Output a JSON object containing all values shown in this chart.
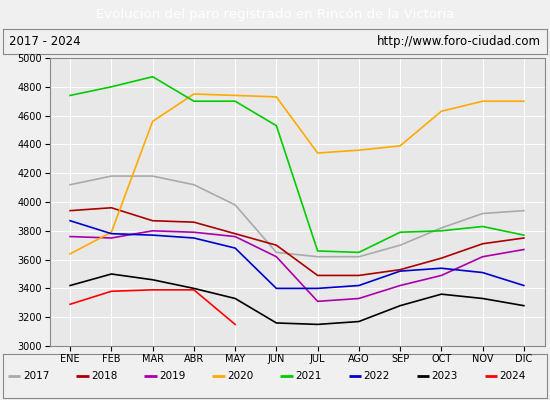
{
  "title": "Evolucion del paro registrado en Rincón de la Victoria",
  "subtitle_left": "2017 - 2024",
  "subtitle_right": "http://www.foro-ciudad.com",
  "ylim": [
    3000,
    5000
  ],
  "months": [
    "ENE",
    "FEB",
    "MAR",
    "ABR",
    "MAY",
    "JUN",
    "JUL",
    "AGO",
    "SEP",
    "OCT",
    "NOV",
    "DIC"
  ],
  "series": {
    "2017": {
      "color": "#aaaaaa",
      "values": [
        4120,
        4180,
        4180,
        4120,
        3980,
        3650,
        3620,
        3620,
        3700,
        3820,
        3920,
        3940
      ]
    },
    "2018": {
      "color": "#aa0000",
      "values": [
        3940,
        3960,
        3870,
        3860,
        3780,
        3700,
        3490,
        3490,
        3530,
        3610,
        3710,
        3750
      ]
    },
    "2019": {
      "color": "#aa00aa",
      "values": [
        3760,
        3750,
        3800,
        3790,
        3760,
        3620,
        3310,
        3330,
        3420,
        3490,
        3620,
        3670
      ]
    },
    "2020": {
      "color": "#ffaa00",
      "values": [
        3640,
        3790,
        4560,
        4750,
        4740,
        4730,
        4340,
        4360,
        4390,
        4630,
        4700,
        4700
      ]
    },
    "2021": {
      "color": "#00cc00",
      "values": [
        4740,
        4800,
        4870,
        4700,
        4700,
        4530,
        3660,
        3650,
        3790,
        3800,
        3830,
        3770
      ]
    },
    "2022": {
      "color": "#0000cc",
      "values": [
        3870,
        3780,
        3770,
        3750,
        3680,
        3400,
        3400,
        3420,
        3520,
        3540,
        3510,
        3420
      ]
    },
    "2023": {
      "color": "#000000",
      "values": [
        3420,
        3500,
        3460,
        3400,
        3330,
        3160,
        3150,
        3170,
        3280,
        3360,
        3330,
        3280
      ]
    },
    "2024": {
      "color": "#ff0000",
      "values": [
        3290,
        3380,
        3390,
        3390,
        3150,
        null,
        null,
        null,
        null,
        null,
        null,
        null
      ]
    }
  },
  "background_color": "#f0f0f0",
  "plot_bg_color": "#e8e8e8",
  "title_bg_color": "#4f86c8",
  "title_text_color": "#ffffff",
  "subtitle_bg_color": "#f0f0f0",
  "grid_color": "#ffffff",
  "yticks": [
    3000,
    3200,
    3400,
    3600,
    3800,
    4000,
    4200,
    4400,
    4600,
    4800,
    5000
  ]
}
